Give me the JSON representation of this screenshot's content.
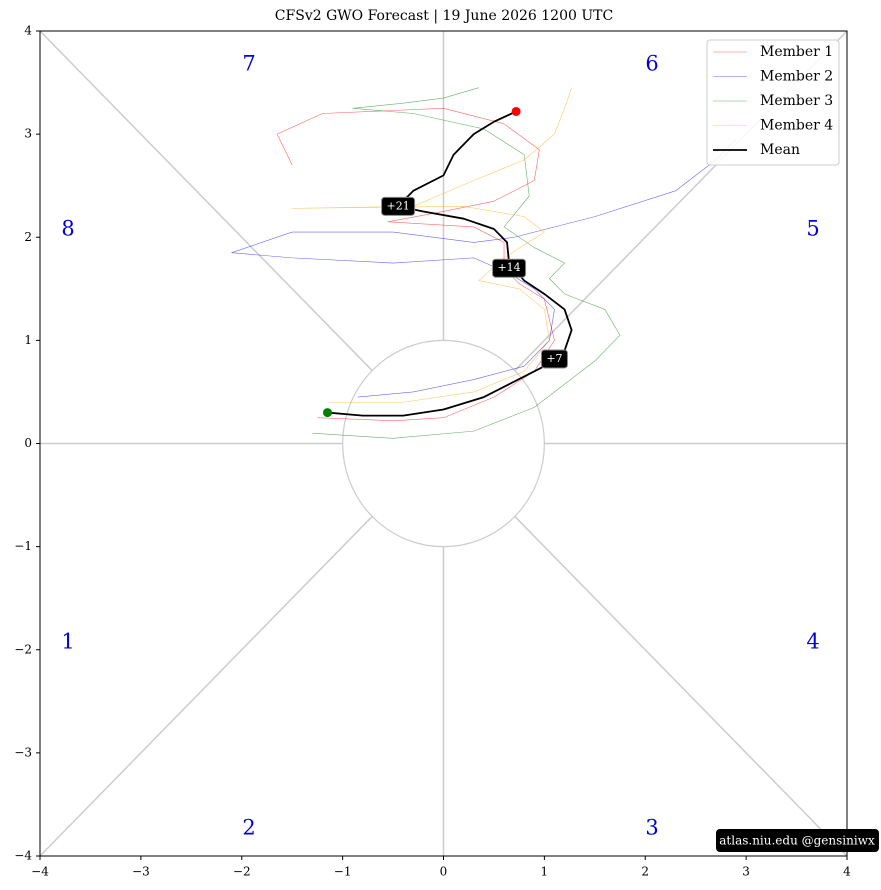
{
  "chart_data": {
    "type": "line",
    "title": "CFSv2 GWO Forecast   |   19  June  2026 1200 UTC",
    "xlim": [
      -4,
      4
    ],
    "ylim": [
      -4,
      4
    ],
    "xticks": [
      {
        "value": -4,
        "label": "−4"
      },
      {
        "value": -3,
        "label": "−3"
      },
      {
        "value": -2,
        "label": "−2"
      },
      {
        "value": -1,
        "label": "−1"
      },
      0,
      1,
      2,
      3,
      4
    ],
    "yticks": [
      {
        "value": -4,
        "label": "−4"
      },
      {
        "value": -3,
        "label": "−3"
      },
      {
        "value": -2,
        "label": "−2"
      },
      {
        "value": -1,
        "label": "−1"
      },
      0,
      1,
      2,
      3,
      4
    ],
    "phase_labels": [
      "1",
      "2",
      "3",
      "4",
      "5",
      "6",
      "7",
      "8"
    ],
    "legend": "upper right",
    "series": [
      {
        "name": "Member 1",
        "color": "#ff0000",
        "x": [
          -1.25,
          -0.5,
          0,
          0.5,
          0.9,
          1.1,
          1.0,
          0.75,
          0.6,
          0.6,
          0.3,
          -0.55,
          0,
          0.5,
          0.9,
          0.95,
          0.6,
          0,
          -1.2,
          -1.65,
          -1.5
        ],
        "y": [
          0.25,
          0.22,
          0.25,
          0.45,
          0.7,
          1.0,
          1.4,
          1.55,
          1.7,
          1.95,
          2.1,
          2.15,
          2.25,
          2.35,
          2.55,
          2.85,
          3.1,
          3.25,
          3.2,
          3.0,
          2.7
        ]
      },
      {
        "name": "Member 2",
        "color": "#0000ff",
        "x": [
          -0.85,
          -0.3,
          0.3,
          0.8,
          1.05,
          1.1,
          0.9,
          0.65,
          0.3,
          -0.5,
          -1.5,
          -2.1,
          -1.5,
          -0.5,
          0.3,
          0.7,
          1.5,
          2.3,
          2.7,
          2.9
        ],
        "y": [
          0.45,
          0.5,
          0.62,
          0.75,
          1.0,
          1.3,
          1.5,
          1.65,
          1.8,
          1.75,
          1.8,
          1.85,
          2.05,
          2.05,
          1.95,
          2.0,
          2.2,
          2.45,
          2.75,
          2.95
        ]
      },
      {
        "name": "Member 3",
        "color": "#008000",
        "x": [
          -1.3,
          -0.5,
          0.3,
          0.9,
          1.5,
          1.75,
          1.6,
          1.2,
          1.05,
          1.2,
          0.9,
          0.6,
          0.85,
          0.8,
          0.4,
          -0.3,
          -0.9,
          -0.4,
          0,
          0.35
        ],
        "y": [
          0.1,
          0.05,
          0.12,
          0.35,
          0.8,
          1.05,
          1.3,
          1.45,
          1.6,
          1.75,
          1.9,
          2.1,
          2.4,
          2.8,
          3.05,
          3.2,
          3.25,
          3.3,
          3.35,
          3.45
        ]
      },
      {
        "name": "Member 4",
        "color": "#ffa500",
        "x": [
          -1.15,
          -0.4,
          0.3,
          0.8,
          1.05,
          1.0,
          0.75,
          0.35,
          0.6,
          1.0,
          0.8,
          0.2,
          -1.5,
          -0.3,
          0.3,
          0.8,
          1.1,
          1.2,
          1.27
        ],
        "y": [
          0.4,
          0.4,
          0.5,
          0.7,
          1.0,
          1.3,
          1.5,
          1.58,
          1.8,
          2.05,
          2.2,
          2.3,
          2.28,
          2.3,
          2.55,
          2.75,
          3.0,
          3.25,
          3.45
        ]
      },
      {
        "name": "Mean",
        "color": "#000000",
        "x": [
          -1.15,
          -0.8,
          -0.4,
          0,
          0.4,
          0.7,
          1.0,
          1.2,
          1.27,
          1.2,
          1.0,
          0.8,
          0.65,
          0.63,
          0.5,
          0.2,
          -0.2,
          -0.45,
          -0.3,
          0,
          0.1,
          0.3,
          0.5,
          0.72
        ],
        "y": [
          0.3,
          0.27,
          0.27,
          0.33,
          0.45,
          0.6,
          0.75,
          0.9,
          1.1,
          1.3,
          1.45,
          1.58,
          1.75,
          1.95,
          2.08,
          2.18,
          2.25,
          2.3,
          2.45,
          2.6,
          2.8,
          3.0,
          3.12,
          3.22
        ]
      }
    ],
    "annotations": [
      {
        "text": "+7",
        "x": 1.1,
        "y": 0.82
      },
      {
        "text": "+14",
        "x": 0.65,
        "y": 1.7
      },
      {
        "text": "+21",
        "x": -0.45,
        "y": 2.3
      }
    ],
    "watermark": "atlas.niu.edu  @gensiniwx"
  }
}
